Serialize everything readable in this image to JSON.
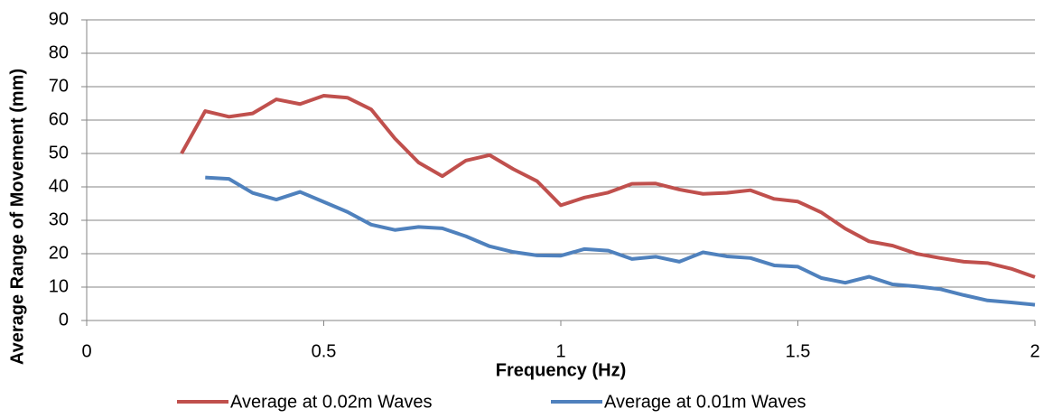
{
  "chart_data": {
    "type": "line",
    "x_label": "Frequency (Hz)",
    "y_label": "Average Range of Movement (mm)",
    "x": [
      0.2,
      0.25,
      0.3,
      0.35,
      0.4,
      0.45,
      0.5,
      0.55,
      0.6,
      0.65,
      0.7,
      0.75,
      0.8,
      0.85,
      0.9,
      0.95,
      1,
      1.05,
      1.1,
      1.15,
      1.2,
      1.25,
      1.3,
      1.35,
      1.4,
      1.45,
      1.5,
      1.55,
      1.6,
      1.65,
      1.7,
      1.75,
      1.8,
      1.85,
      1.9,
      1.95,
      2
    ],
    "series": [
      {
        "name": "Average at 0.02m Waves",
        "color": "#c0504d",
        "values": [
          50,
          62.7,
          61,
          62,
          66.2,
          64.8,
          67.3,
          66.7,
          63.2,
          54.5,
          47.3,
          43.2,
          47.9,
          49.5,
          45.3,
          41.7,
          34.5,
          36.8,
          38.3,
          40.9,
          41,
          39.2,
          37.9,
          38.2,
          39,
          36.4,
          35.6,
          32.3,
          27.5,
          23.7,
          22.4,
          20,
          18.7,
          17.6,
          17.2,
          15.5,
          13
        ]
      },
      {
        "name": "Average at 0.01m Waves",
        "color": "#4f81bd",
        "values": [
          null,
          42.8,
          42.4,
          38.2,
          36.2,
          38.5,
          35.5,
          32.5,
          28.7,
          27.1,
          28,
          27.6,
          25.2,
          22.2,
          20.5,
          19.5,
          19.4,
          21.4,
          20.9,
          18.4,
          19.1,
          17.6,
          20.4,
          19.2,
          18.7,
          16.5,
          16.1,
          12.7,
          11.3,
          13.1,
          10.8,
          10.2,
          9.4,
          7.6,
          6,
          5.4,
          4.7
        ]
      }
    ],
    "xlim": [
      0,
      2
    ],
    "xticks": [
      0,
      0.5,
      1,
      1.5,
      2
    ],
    "ylim": [
      0,
      90
    ],
    "yticks": [
      0,
      10,
      20,
      30,
      40,
      50,
      60,
      70,
      80,
      90
    ],
    "grid": true,
    "legend": "bottom"
  }
}
